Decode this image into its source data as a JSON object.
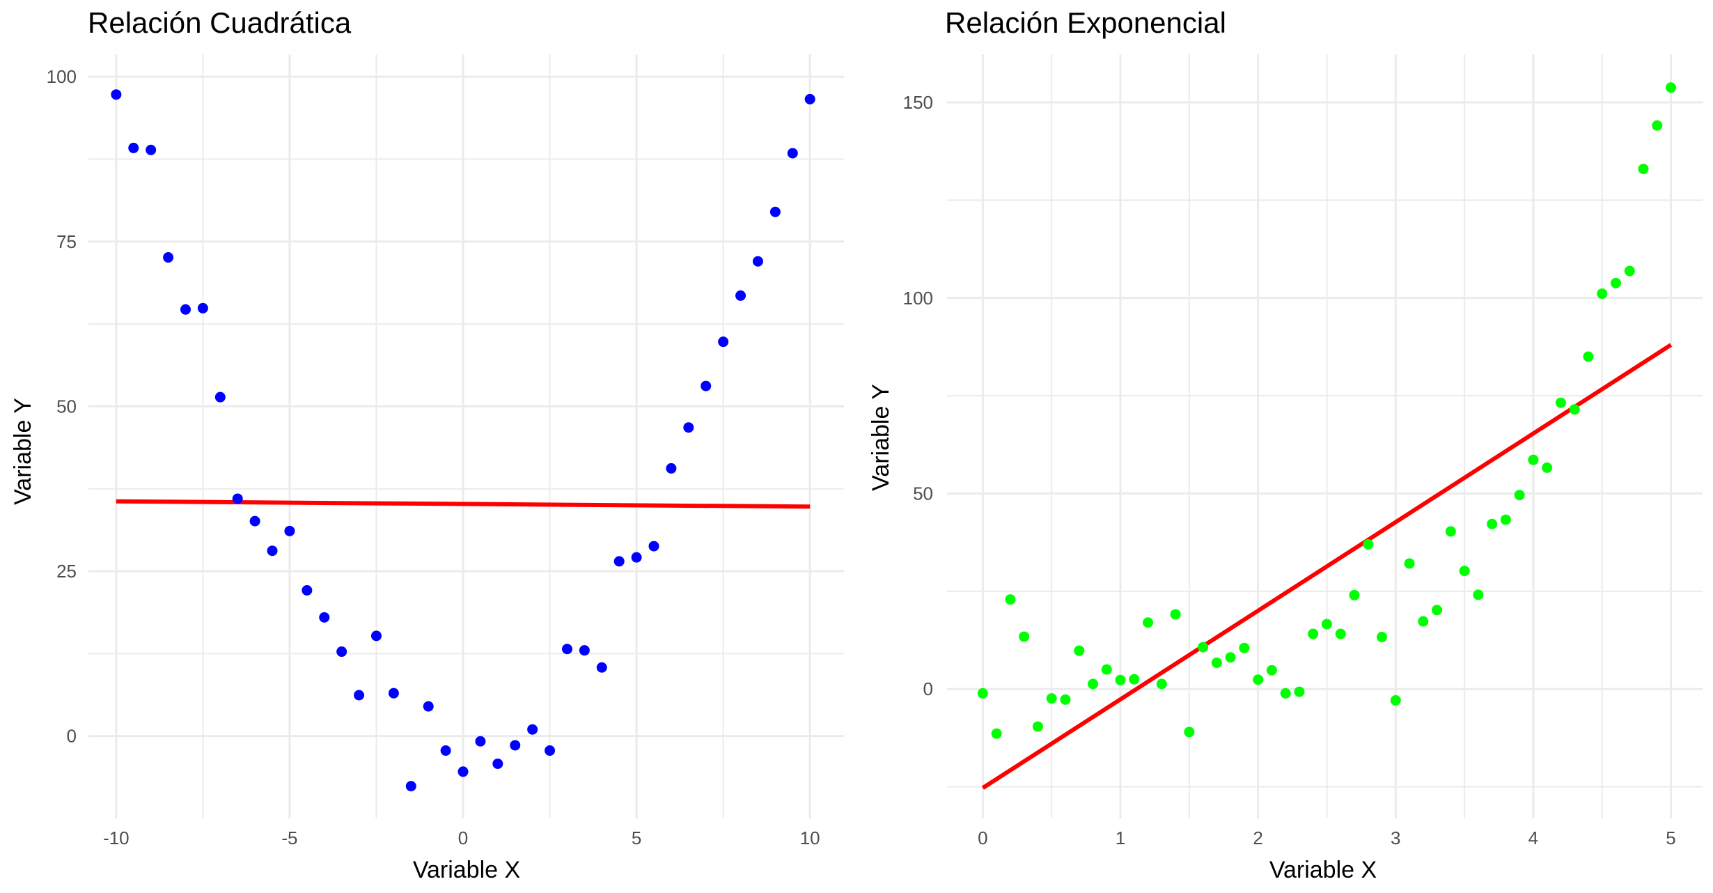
{
  "chart_data": [
    {
      "type": "scatter",
      "title": "Relación Cuadrática",
      "xlabel": "Variable X",
      "ylabel": "Variable Y",
      "xlim": [
        -10.8,
        10.98
      ],
      "ylim": [
        -12.5,
        103.4
      ],
      "xticks": [
        -10,
        -5,
        0,
        5,
        10
      ],
      "xtick_labels": [
        "-10",
        "-5",
        "0",
        "5",
        "10"
      ],
      "yticks": [
        0,
        25,
        50,
        75,
        100
      ],
      "ytick_labels": [
        "0",
        "25",
        "50",
        "75",
        "100"
      ],
      "grid": true,
      "point_color": "#0000ff",
      "line_color": "#ff0000",
      "x": [
        -10,
        -9.5,
        -9,
        -8.5,
        -8,
        -7.5,
        -7,
        -6.5,
        -6,
        -5.5,
        -5,
        -4.5,
        -4,
        -3.5,
        -3,
        -2.5,
        -2,
        -1.5,
        -1,
        -0.5,
        0,
        0.5,
        1,
        1.5,
        2,
        2.5,
        3,
        3.5,
        4,
        4.5,
        5,
        5.5,
        6,
        6.5,
        7,
        7.5,
        8,
        8.5,
        9,
        9.5,
        10
      ],
      "y": [
        97.3,
        89.2,
        88.9,
        72.6,
        64.7,
        64.9,
        51.4,
        36.0,
        32.6,
        28.1,
        31.1,
        22.1,
        18.0,
        12.8,
        6.2,
        15.2,
        6.5,
        -7.6,
        4.5,
        -2.2,
        -5.4,
        -0.8,
        -4.2,
        -1.4,
        1.0,
        -2.2,
        13.2,
        13.0,
        10.4,
        26.5,
        27.1,
        28.8,
        40.6,
        46.8,
        53.1,
        59.8,
        66.8,
        72.0,
        79.5,
        88.4,
        96.6
      ],
      "fit_line": {
        "x": [
          -10,
          10
        ],
        "y": [
          35.6,
          34.8
        ]
      }
    },
    {
      "type": "scatter",
      "title": "Relación Exponencial",
      "xlabel": "Variable X",
      "ylabel": "Variable Y",
      "xlim": [
        -0.26,
        5.23
      ],
      "ylim": [
        -33.1,
        162.3
      ],
      "xticks": [
        0,
        1,
        2,
        3,
        4,
        5
      ],
      "xtick_labels": [
        "0",
        "1",
        "2",
        "3",
        "4",
        "5"
      ],
      "yticks": [
        0,
        50,
        100,
        150
      ],
      "ytick_labels": [
        "0",
        "50",
        "100",
        "150"
      ],
      "grid": true,
      "point_color": "#00ff00",
      "line_color": "#ff0000",
      "x": [
        0,
        0.1,
        0.2,
        0.3,
        0.4,
        0.5,
        0.6,
        0.7,
        0.8,
        0.9,
        1.0,
        1.1,
        1.2,
        1.3,
        1.4,
        1.5,
        1.6,
        1.7,
        1.8,
        1.9,
        2.0,
        2.1,
        2.2,
        2.3,
        2.4,
        2.5,
        2.6,
        2.7,
        2.8,
        2.9,
        3.0,
        3.1,
        3.2,
        3.3,
        3.4,
        3.5,
        3.6,
        3.7,
        3.8,
        3.9,
        4.0,
        4.1,
        4.2,
        4.3,
        4.4,
        4.5,
        4.6,
        4.7,
        4.8,
        4.9,
        5.0
      ],
      "y": [
        -1.1,
        -11.4,
        22.9,
        13.4,
        -9.6,
        -2.4,
        -2.7,
        9.8,
        1.3,
        5.0,
        2.3,
        2.5,
        17.0,
        1.3,
        19.1,
        -11.0,
        10.7,
        6.7,
        8.1,
        10.5,
        2.4,
        4.8,
        -1.1,
        -0.7,
        14.1,
        16.6,
        14.1,
        24.0,
        37.0,
        13.3,
        -2.9,
        32.1,
        17.3,
        20.2,
        40.3,
        30.2,
        24.1,
        42.2,
        43.3,
        49.6,
        58.6,
        56.6,
        73.2,
        71.5,
        85.0,
        101.1,
        103.8,
        106.9,
        133.0,
        144.1,
        153.8
      ],
      "fit_line": {
        "x": [
          0,
          5
        ],
        "y": [
          -25.3,
          88.0
        ]
      }
    }
  ]
}
